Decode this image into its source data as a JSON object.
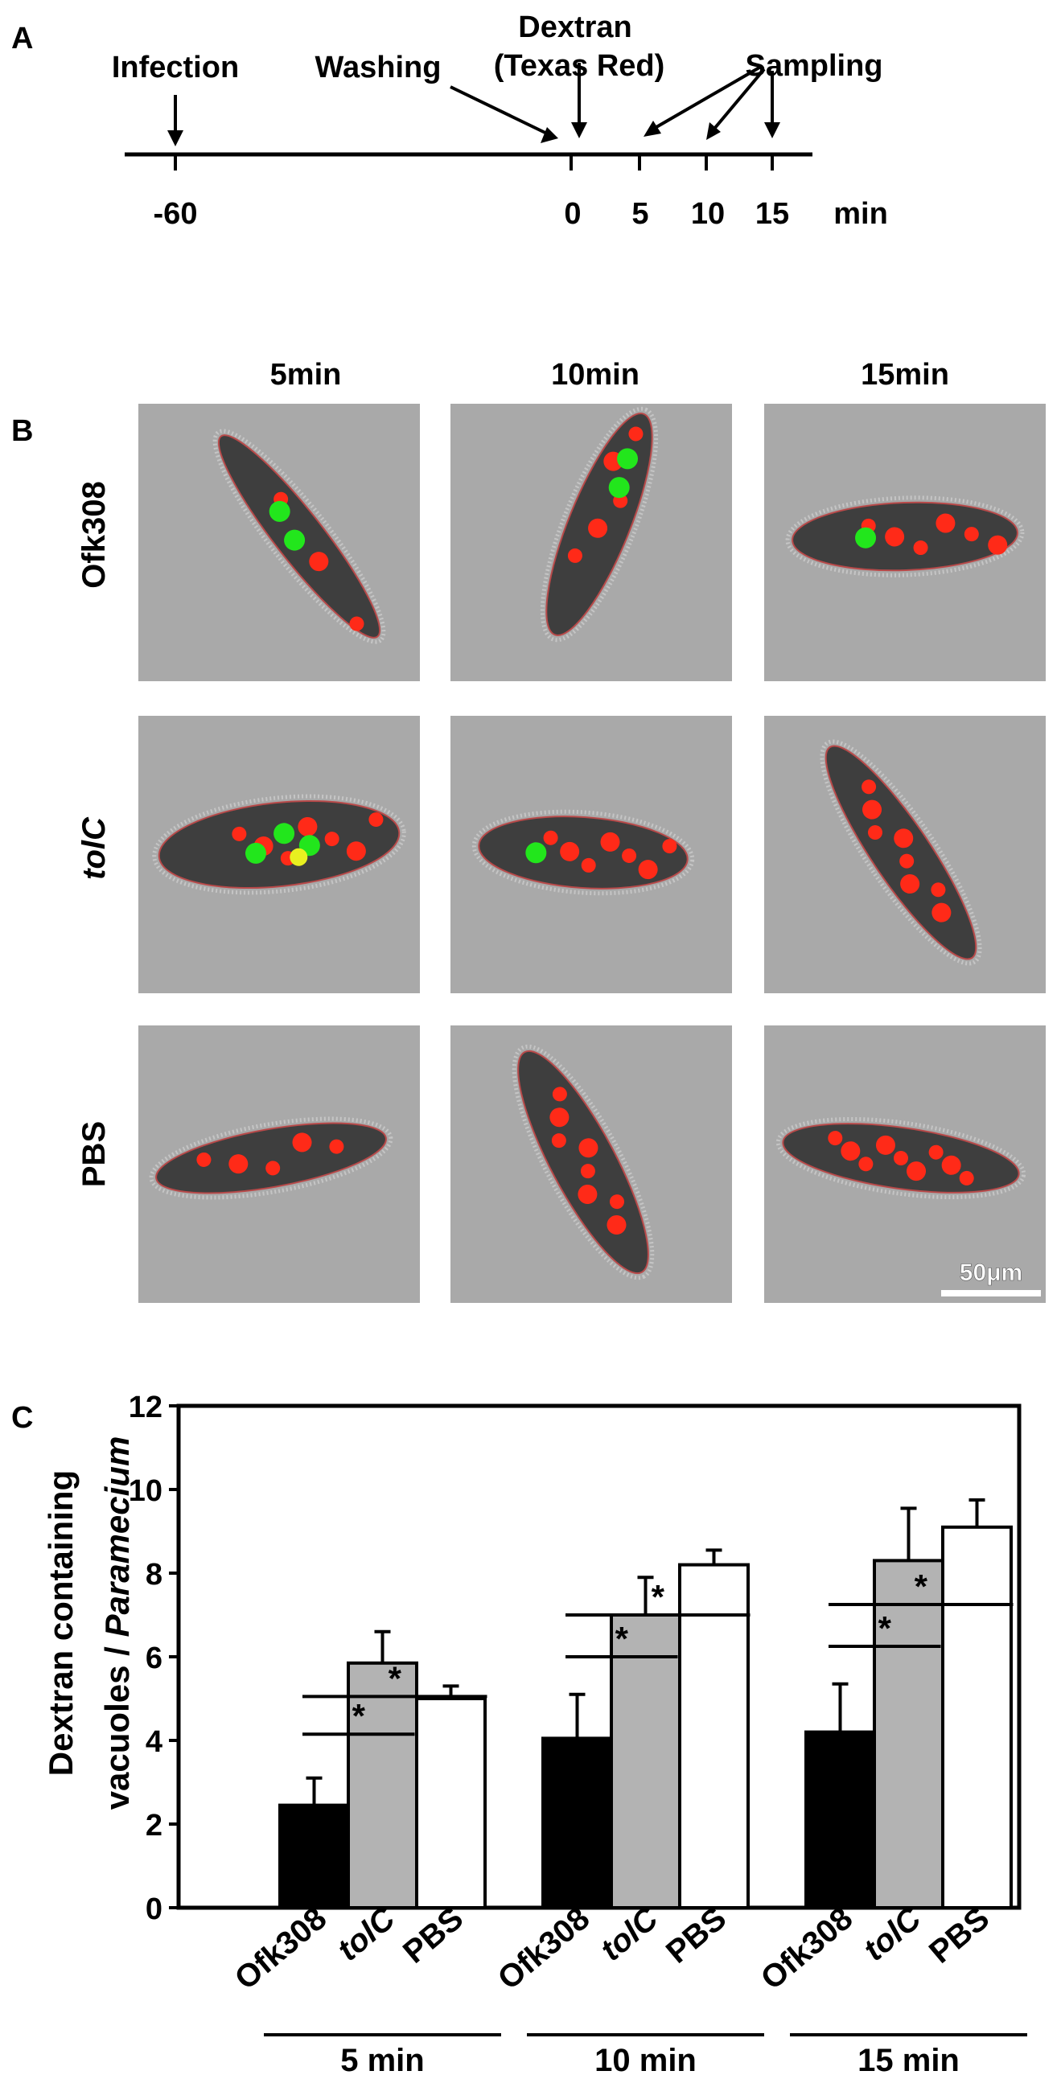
{
  "panel_a": {
    "letter": "A",
    "events": {
      "infection": "Infection",
      "washing": "Washing",
      "dextran_line1": "Dextran",
      "dextran_line2": "(Texas Red)",
      "sampling": "Sampling"
    },
    "ticks": [
      "-60",
      "0",
      "5",
      "10",
      "15"
    ],
    "unit": "min"
  },
  "panel_b": {
    "letter": "B",
    "column_headers": [
      "5min",
      "10min",
      "15min"
    ],
    "row_labels": [
      "Ofk308",
      "tolC",
      "PBS"
    ],
    "scale_bar": "50μm",
    "colors": {
      "background": "#a9a9a9",
      "cell_body": "#3e3e3e",
      "cell_outline": "#b84a4a",
      "red_vacuole": "#ff2a18",
      "green_bacteria": "#22e61c",
      "yellow_overlap": "#e8f020"
    },
    "images": [
      {
        "row": "Ofk308",
        "time": "5min",
        "red_vacuoles": 3,
        "green": true
      },
      {
        "row": "Ofk308",
        "time": "10min",
        "red_vacuoles": 5,
        "green": true
      },
      {
        "row": "Ofk308",
        "time": "15min",
        "red_vacuoles": 6,
        "green": true
      },
      {
        "row": "tolC",
        "time": "5min",
        "red_vacuoles": 7,
        "green": true
      },
      {
        "row": "tolC",
        "time": "10min",
        "red_vacuoles": 7,
        "green": true
      },
      {
        "row": "tolC",
        "time": "15min",
        "red_vacuoles": 8,
        "green": false
      },
      {
        "row": "PBS",
        "time": "5min",
        "red_vacuoles": 5,
        "green": false
      },
      {
        "row": "PBS",
        "time": "10min",
        "red_vacuoles": 8,
        "green": false
      },
      {
        "row": "PBS",
        "time": "15min",
        "red_vacuoles": 9,
        "green": false
      }
    ]
  },
  "panel_c": {
    "letter": "C"
  },
  "chart_data": {
    "type": "bar",
    "ylabel_line1": "Dextran containing",
    "ylabel_line2_prefix": "vacuoles / ",
    "ylabel_line2_italic": "Paramecium",
    "ylim": [
      0,
      12
    ],
    "yticks": [
      0,
      2,
      4,
      6,
      8,
      10,
      12
    ],
    "groups": [
      "5 min",
      "10 min",
      "15 min"
    ],
    "categories": [
      "Ofk308",
      "tolC",
      "PBS"
    ],
    "series": [
      {
        "name": "Ofk308",
        "color": "#000000",
        "values": [
          2.45,
          4.05,
          4.2
        ],
        "errors": [
          0.65,
          1.05,
          1.15
        ]
      },
      {
        "name": "tolC",
        "color": "#b3b3b3",
        "values": [
          5.85,
          7.0,
          8.3
        ],
        "errors": [
          0.75,
          0.9,
          1.25
        ]
      },
      {
        "name": "PBS",
        "color": "#ffffff",
        "values": [
          5.0,
          8.2,
          9.1
        ],
        "errors": [
          0.3,
          0.35,
          0.65
        ]
      }
    ],
    "significance_marker": "*",
    "significance": [
      {
        "group": 0,
        "from": "Ofk308",
        "to": "tolC"
      },
      {
        "group": 0,
        "from": "Ofk308",
        "to": "PBS"
      },
      {
        "group": 1,
        "from": "Ofk308",
        "to": "tolC"
      },
      {
        "group": 1,
        "from": "Ofk308",
        "to": "PBS"
      },
      {
        "group": 2,
        "from": "Ofk308",
        "to": "tolC"
      },
      {
        "group": 2,
        "from": "Ofk308",
        "to": "PBS"
      }
    ],
    "grid": false,
    "legend": "none"
  }
}
